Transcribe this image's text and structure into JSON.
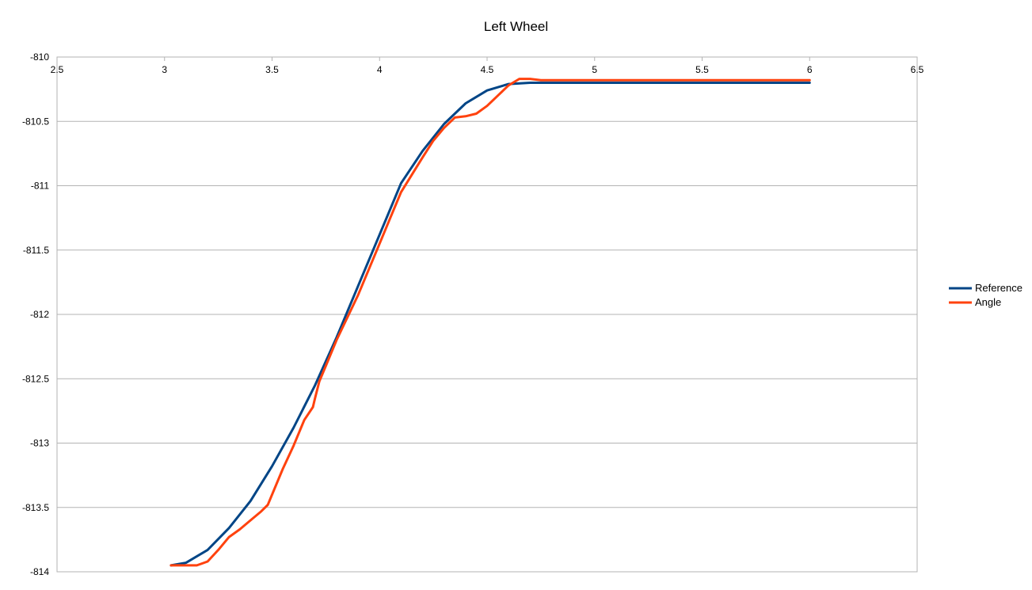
{
  "chart_data": {
    "type": "line",
    "title": "Left Wheel",
    "xlabel": "",
    "ylabel": "",
    "xlim": [
      2.5,
      6.5
    ],
    "ylim": [
      -814,
      -810
    ],
    "x_ticks": [
      "2.5",
      "3",
      "3.5",
      "4",
      "4.5",
      "5",
      "5.5",
      "6",
      "6.5"
    ],
    "y_ticks": [
      "-810",
      "-810.5",
      "-811",
      "-811.5",
      "-812",
      "-812.5",
      "-813",
      "-813.5",
      "-814"
    ],
    "grid": "horizontal",
    "x_axis_position": "top",
    "legend_position": "right",
    "series": [
      {
        "name": "Reference",
        "color": "#004586",
        "points": [
          [
            3.03,
            -813.95
          ],
          [
            3.1,
            -813.93
          ],
          [
            3.2,
            -813.83
          ],
          [
            3.3,
            -813.66
          ],
          [
            3.4,
            -813.45
          ],
          [
            3.5,
            -813.18
          ],
          [
            3.6,
            -812.88
          ],
          [
            3.7,
            -812.55
          ],
          [
            3.8,
            -812.18
          ],
          [
            3.9,
            -811.78
          ],
          [
            4.0,
            -811.38
          ],
          [
            4.1,
            -810.98
          ],
          [
            4.2,
            -810.73
          ],
          [
            4.3,
            -810.52
          ],
          [
            4.4,
            -810.36
          ],
          [
            4.5,
            -810.26
          ],
          [
            4.6,
            -810.21
          ],
          [
            4.7,
            -810.2
          ],
          [
            4.8,
            -810.2
          ],
          [
            5.0,
            -810.2
          ],
          [
            5.5,
            -810.2
          ],
          [
            6.0,
            -810.2
          ]
        ]
      },
      {
        "name": "Angle",
        "color": "#ff420e",
        "points": [
          [
            3.03,
            -813.95
          ],
          [
            3.1,
            -813.95
          ],
          [
            3.15,
            -813.95
          ],
          [
            3.2,
            -813.92
          ],
          [
            3.25,
            -813.83
          ],
          [
            3.3,
            -813.73
          ],
          [
            3.35,
            -813.67
          ],
          [
            3.4,
            -813.6
          ],
          [
            3.45,
            -813.53
          ],
          [
            3.48,
            -813.48
          ],
          [
            3.55,
            -813.2
          ],
          [
            3.6,
            -813.02
          ],
          [
            3.65,
            -812.82
          ],
          [
            3.69,
            -812.72
          ],
          [
            3.7,
            -812.65
          ],
          [
            3.72,
            -812.52
          ],
          [
            3.75,
            -812.4
          ],
          [
            3.8,
            -812.2
          ],
          [
            3.9,
            -811.85
          ],
          [
            4.0,
            -811.45
          ],
          [
            4.05,
            -811.25
          ],
          [
            4.1,
            -811.05
          ],
          [
            4.2,
            -810.78
          ],
          [
            4.25,
            -810.65
          ],
          [
            4.3,
            -810.55
          ],
          [
            4.35,
            -810.47
          ],
          [
            4.4,
            -810.46
          ],
          [
            4.45,
            -810.44
          ],
          [
            4.5,
            -810.38
          ],
          [
            4.55,
            -810.3
          ],
          [
            4.6,
            -810.22
          ],
          [
            4.65,
            -810.17
          ],
          [
            4.7,
            -810.17
          ],
          [
            4.75,
            -810.18
          ],
          [
            5.0,
            -810.18
          ],
          [
            5.5,
            -810.18
          ],
          [
            6.0,
            -810.18
          ]
        ]
      }
    ]
  }
}
